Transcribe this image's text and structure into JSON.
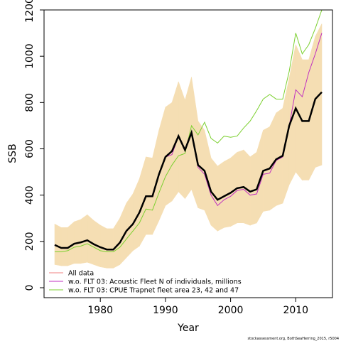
{
  "chart_data": {
    "type": "line",
    "x_label": "Year",
    "y_label": "SSB",
    "footnote": "stockassessment.org, BothSeaHerring_2015, r5004",
    "x": [
      1973,
      1974,
      1975,
      1976,
      1977,
      1978,
      1979,
      1980,
      1981,
      1982,
      1983,
      1984,
      1985,
      1986,
      1987,
      1988,
      1989,
      1990,
      1991,
      1992,
      1993,
      1994,
      1995,
      1996,
      1997,
      1998,
      1999,
      2000,
      2001,
      2002,
      2003,
      2004,
      2005,
      2006,
      2007,
      2008,
      2009,
      2010,
      2011,
      2012,
      2013,
      2014
    ],
    "band": {
      "color": "#f5deb3",
      "upper": [
        275,
        260,
        260,
        285,
        295,
        315,
        290,
        270,
        255,
        255,
        300,
        365,
        405,
        470,
        565,
        560,
        680,
        780,
        800,
        890,
        810,
        910,
        720,
        680,
        560,
        525,
        545,
        560,
        585,
        595,
        565,
        585,
        680,
        695,
        755,
        775,
        905,
        1050,
        985,
        985,
        1085,
        1140
      ],
      "lower": [
        100,
        95,
        95,
        105,
        105,
        110,
        100,
        90,
        85,
        85,
        100,
        130,
        160,
        180,
        230,
        230,
        290,
        355,
        375,
        415,
        385,
        425,
        345,
        335,
        270,
        245,
        260,
        265,
        280,
        280,
        270,
        280,
        330,
        335,
        355,
        365,
        445,
        500,
        465,
        465,
        520,
        530
      ]
    },
    "series": [
      {
        "name": "All data",
        "color": "#000000",
        "legend_color": "#f08080",
        "width": 2.5,
        "values": [
          185,
          172,
          172,
          190,
          196,
          205,
          188,
          175,
          165,
          165,
          195,
          245,
          275,
          325,
          395,
          395,
          490,
          565,
          590,
          655,
          595,
          670,
          530,
          505,
          415,
          380,
          395,
          410,
          430,
          435,
          415,
          425,
          505,
          515,
          555,
          570,
          700,
          775,
          720,
          720,
          815,
          845
        ]
      },
      {
        "name": "w.o. FLT 03: Acoustic Fleet   N of individuals, millions",
        "color": "#c030c0",
        "legend_color": "#c030c0",
        "width": 1,
        "values": [
          185,
          172,
          172,
          190,
          196,
          205,
          188,
          175,
          165,
          165,
          195,
          245,
          275,
          325,
          395,
          395,
          490,
          565,
          575,
          655,
          595,
          670,
          520,
          490,
          400,
          355,
          380,
          395,
          420,
          425,
          400,
          405,
          490,
          495,
          550,
          565,
          700,
          855,
          825,
          930,
          1010,
          1100
        ]
      },
      {
        "name": "w.o. FLT 03: CPUE Trapnet fleet area 23, 42 and 47",
        "color": "#7cd030",
        "legend_color": "#7cd030",
        "width": 1,
        "values": [
          155,
          155,
          160,
          175,
          180,
          190,
          175,
          160,
          155,
          155,
          175,
          210,
          245,
          280,
          340,
          335,
          410,
          480,
          530,
          570,
          580,
          700,
          660,
          715,
          645,
          625,
          655,
          650,
          655,
          690,
          720,
          765,
          815,
          835,
          815,
          815,
          935,
          1100,
          1010,
          1050,
          1120,
          1200
        ]
      }
    ],
    "xlim": [
      1971.36,
      2015.64
    ],
    "ylim": [
      -43,
      1200
    ],
    "xticks": [
      1980,
      1990,
      2000,
      2010
    ],
    "yticks": [
      0,
      200,
      400,
      600,
      800,
      1000,
      1200
    ]
  }
}
